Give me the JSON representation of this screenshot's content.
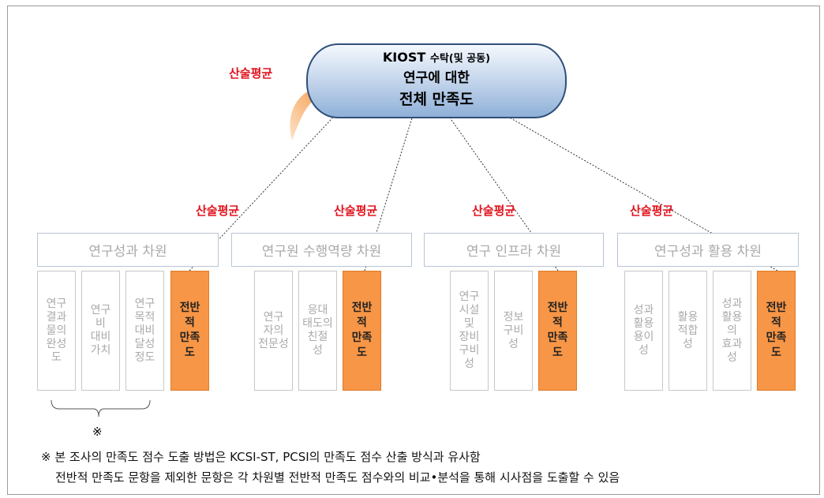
{
  "top": {
    "line1_main": "KIOST",
    "line1_sub": "수탁(및 공동)",
    "line2": "연구에 대한",
    "line3": "전체 만족도"
  },
  "top_avg_label": "산술평균",
  "dimensions": [
    {
      "avg_label": "산술평균",
      "title": "연구성과 차원",
      "items": [
        [
          "연구",
          "결과",
          "물의",
          "완성",
          "도"
        ],
        [
          "연구",
          "비",
          "대비",
          "가치"
        ],
        [
          "연구",
          "목적",
          "대비",
          "달성",
          "정도"
        ],
        [
          "전반",
          "적",
          "만족",
          "도"
        ]
      ]
    },
    {
      "avg_label": "산술평균",
      "title": "연구원 수행역량 차원",
      "items": [
        [
          "연구",
          "자의",
          "전문성"
        ],
        [
          "응대",
          "태도의",
          "친절",
          "성"
        ],
        [
          "전반",
          "적",
          "만족",
          "도"
        ]
      ]
    },
    {
      "avg_label": "산술평균",
      "title": "연구 인프라 차원",
      "items": [
        [
          "연구",
          "시설",
          "및",
          "장비",
          "구비",
          "성"
        ],
        [
          "정보",
          "구비",
          "성"
        ],
        [
          "전반",
          "적",
          "만족",
          "도"
        ]
      ]
    },
    {
      "avg_label": "산술평균",
      "title": "연구성과 활용 차원",
      "items": [
        [
          "성과",
          "활용",
          "용이",
          "성"
        ],
        [
          "활용",
          "적합",
          "성"
        ],
        [
          "성과",
          "활용",
          "의",
          "효과",
          "성"
        ],
        [
          "전반",
          "적",
          "만족",
          "도"
        ]
      ]
    }
  ],
  "bracket_mark": "※",
  "notes": [
    "※ 본 조사의 만족도 점수 도출 방법은 KCSI-ST, PCSI의 만족도 점수 산출 방식과 유사함",
    "전반적 만족도 문항을 제외한 문항은 각 차원별 전반적 만족도 점수와의 비교•분석을 통해 시사점을 도출할 수 있음"
  ]
}
